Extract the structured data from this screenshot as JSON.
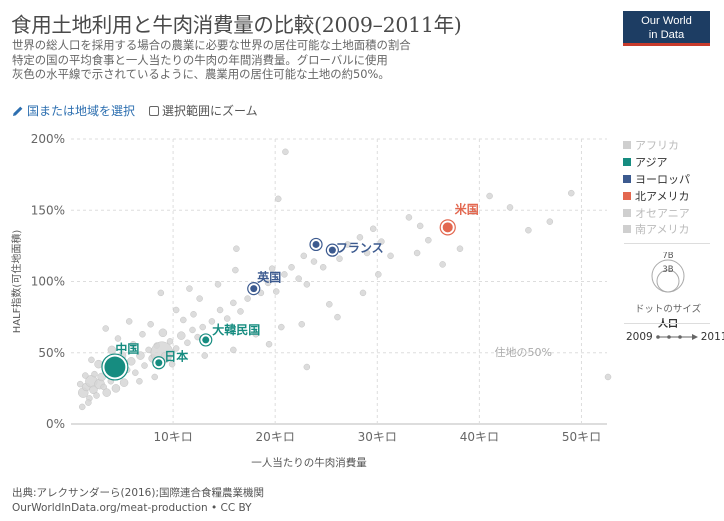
{
  "title": "食用土地利用と牛肉消費量の比較(2009–2011年)",
  "subtitle": [
    "世界の総人口を採用する場合の農業に必要な世界の居住可能な土地面積の割合",
    "特定の国の平均食事と一人当たりの牛肉の年間消費量。グローバルに使用",
    "灰色の水平線で示されているように、農業用の居住可能な土地の約50%。"
  ],
  "logo": {
    "line1": "Our World",
    "line2": "in Data"
  },
  "controls": {
    "select_label": "国または地域を選択",
    "zoom_label": "選択範囲にズーム"
  },
  "legend": [
    {
      "label": "アフリカ",
      "color": "#cfcfcf",
      "text_color": "#bbbbbb"
    },
    {
      "label": "アジア",
      "color": "#168c80",
      "text_color": "#333333"
    },
    {
      "label": "ヨーロッパ",
      "color": "#3c5a8f",
      "text_color": "#333333"
    },
    {
      "label": "北アメリカ",
      "color": "#e3674f",
      "text_color": "#333333"
    },
    {
      "label": "オセアニア",
      "color": "#cfcfcf",
      "text_color": "#bbbbbb"
    },
    {
      "label": "南アメリカ",
      "color": "#cfcfcf",
      "text_color": "#bbbbbb"
    }
  ],
  "size_legend": {
    "big": "7B",
    "small": "3B",
    "title": "ドットのサイズ",
    "subtitle": "人口"
  },
  "time_range": {
    "start": "2009",
    "end": "2011"
  },
  "footer": {
    "source": "出典:アレクサンダーら(2016);国際連合食糧農業機関",
    "url": "OurWorldInData.org/meat-production • CC BY"
  },
  "chart_data": {
    "type": "scatter",
    "xlabel": "一人当たりの牛肉消費量",
    "ylabel": "HALF指数(可住地面積)",
    "x_range": [
      0,
      52.5
    ],
    "y_range": [
      0,
      200
    ],
    "x_ticks": [
      10,
      20,
      30,
      40,
      50
    ],
    "x_tick_labels": [
      "10キロ",
      "20キロ",
      "30キロ",
      "40キロ",
      "50キロ"
    ],
    "y_ticks": [
      0,
      50,
      100,
      150,
      200
    ],
    "y_tick_labels": [
      "0%",
      "50%",
      "100%",
      "150%",
      "200%"
    ],
    "reference_line": {
      "y": 50,
      "label": "住地の50%"
    },
    "grid": true,
    "highlighted": [
      {
        "label": "中国",
        "x": 4.3,
        "y": 40,
        "region": "アジア",
        "color": "#168c80",
        "pop": 1.35
      },
      {
        "label": "日本",
        "x": 8.6,
        "y": 43,
        "region": "アジア",
        "color": "#168c80",
        "pop": 0.13
      },
      {
        "label": "大韓民国",
        "x": 13.2,
        "y": 59,
        "region": "アジア",
        "color": "#168c80",
        "pop": 0.05
      },
      {
        "label": "英国",
        "x": 17.9,
        "y": 95,
        "region": "ヨーロッパ",
        "color": "#3c5a8f",
        "pop": 0.063
      },
      {
        "label": "フランス",
        "x": 25.6,
        "y": 122,
        "region": "ヨーロッパ",
        "color": "#3c5a8f",
        "pop": 0.065
      },
      {
        "label": "",
        "x": 24.0,
        "y": 126,
        "region": "ヨーロッパ",
        "color": "#3c5a8f",
        "pop": 0.08
      },
      {
        "label": "米国",
        "x": 36.9,
        "y": 138,
        "region": "北アメリカ",
        "color": "#e3674f",
        "pop": 0.31
      }
    ],
    "background_points": [
      [
        1.2,
        22
      ],
      [
        1.5,
        26
      ],
      [
        1.8,
        18
      ],
      [
        2.0,
        30
      ],
      [
        2.2,
        24
      ],
      [
        2.5,
        20
      ],
      [
        2.8,
        28
      ],
      [
        3.0,
        33
      ],
      [
        3.2,
        26
      ],
      [
        3.5,
        22
      ],
      [
        2.3,
        35
      ],
      [
        1.7,
        15
      ],
      [
        2.7,
        42
      ],
      [
        3.6,
        38
      ],
      [
        3.9,
        30
      ],
      [
        4.4,
        25
      ],
      [
        4.8,
        34
      ],
      [
        5.2,
        29
      ],
      [
        5.5,
        38
      ],
      [
        5.9,
        44
      ],
      [
        6.3,
        36
      ],
      [
        6.8,
        48
      ],
      [
        7.2,
        41
      ],
      [
        7.6,
        52
      ],
      [
        8.0,
        46
      ],
      [
        8.4,
        55
      ],
      [
        8.9,
        50
      ],
      [
        9.3,
        47
      ],
      [
        9.7,
        58
      ],
      [
        10.3,
        53
      ],
      [
        10.8,
        62
      ],
      [
        11.4,
        57
      ],
      [
        11.9,
        66
      ],
      [
        12.4,
        61
      ],
      [
        12.9,
        68
      ],
      [
        6.1,
        56
      ],
      [
        5.0,
        48
      ],
      [
        4.6,
        60
      ],
      [
        7.0,
        63
      ],
      [
        9.0,
        64
      ],
      [
        11.0,
        73
      ],
      [
        12.0,
        77
      ],
      [
        13.8,
        72
      ],
      [
        14.6,
        80
      ],
      [
        15.3,
        74
      ],
      [
        15.9,
        85
      ],
      [
        16.6,
        79
      ],
      [
        17.3,
        88
      ],
      [
        18.6,
        92
      ],
      [
        19.3,
        99
      ],
      [
        20.1,
        93
      ],
      [
        20.9,
        105
      ],
      [
        21.6,
        110
      ],
      [
        22.3,
        102
      ],
      [
        23.1,
        98
      ],
      [
        23.8,
        114
      ],
      [
        22.8,
        118
      ],
      [
        24.7,
        110
      ],
      [
        26.3,
        116
      ],
      [
        27.1,
        126
      ],
      [
        28.3,
        131
      ],
      [
        29.0,
        120
      ],
      [
        29.6,
        137
      ],
      [
        30.4,
        128
      ],
      [
        31.3,
        118
      ],
      [
        33.1,
        145
      ],
      [
        34.2,
        139
      ],
      [
        35.0,
        129
      ],
      [
        38.1,
        123
      ],
      [
        39.4,
        149
      ],
      [
        41.0,
        160
      ],
      [
        43.0,
        152
      ],
      [
        21.0,
        191
      ],
      [
        16.2,
        123
      ],
      [
        19.7,
        109
      ],
      [
        20.6,
        68
      ],
      [
        14.4,
        98
      ],
      [
        12.6,
        88
      ],
      [
        7.8,
        70
      ],
      [
        10.3,
        80
      ],
      [
        3.4,
        67
      ],
      [
        5.7,
        72
      ],
      [
        4.0,
        52
      ],
      [
        6.7,
        30
      ],
      [
        8.2,
        33
      ],
      [
        9.9,
        42
      ],
      [
        13.1,
        48
      ],
      [
        15.9,
        52
      ],
      [
        18.1,
        63
      ],
      [
        19.4,
        56
      ],
      [
        22.6,
        70
      ],
      [
        25.3,
        84
      ],
      [
        28.6,
        92
      ],
      [
        30.1,
        105
      ],
      [
        33.9,
        120
      ],
      [
        36.4,
        112
      ],
      [
        44.8,
        136
      ],
      [
        46.9,
        142
      ],
      [
        49.0,
        162
      ],
      [
        52.6,
        33
      ],
      [
        1.1,
        12
      ],
      [
        0.9,
        28
      ],
      [
        1.4,
        34
      ],
      [
        2.0,
        45
      ],
      [
        23.1,
        40
      ],
      [
        26.1,
        75
      ],
      [
        11.6,
        95
      ],
      [
        8.8,
        92
      ],
      [
        16.1,
        108
      ],
      [
        20.3,
        158
      ]
    ],
    "background_sizes": [
      5,
      4,
      3,
      6,
      4,
      3,
      5,
      4,
      3,
      4,
      3,
      3,
      4,
      5,
      3,
      4,
      3,
      4,
      3,
      4,
      3,
      4,
      3,
      3,
      4,
      3,
      11,
      5,
      3,
      3,
      4,
      3,
      3,
      3,
      3,
      3,
      4,
      3,
      3,
      4,
      3,
      3,
      3,
      3,
      3,
      3,
      3,
      3,
      3,
      3,
      3,
      3,
      3,
      3,
      3,
      3,
      3,
      3,
      3,
      3,
      3,
      3,
      3,
      3,
      3,
      3,
      3,
      3,
      3,
      3,
      3,
      3,
      3,
      3,
      3,
      3,
      3,
      3,
      3,
      3,
      3,
      3,
      4,
      3,
      3,
      3,
      3,
      3,
      3,
      3,
      3,
      3,
      3,
      3,
      3,
      3,
      3,
      3,
      3,
      3,
      3,
      3,
      3,
      3,
      3,
      3,
      3,
      3,
      3,
      3
    ]
  }
}
